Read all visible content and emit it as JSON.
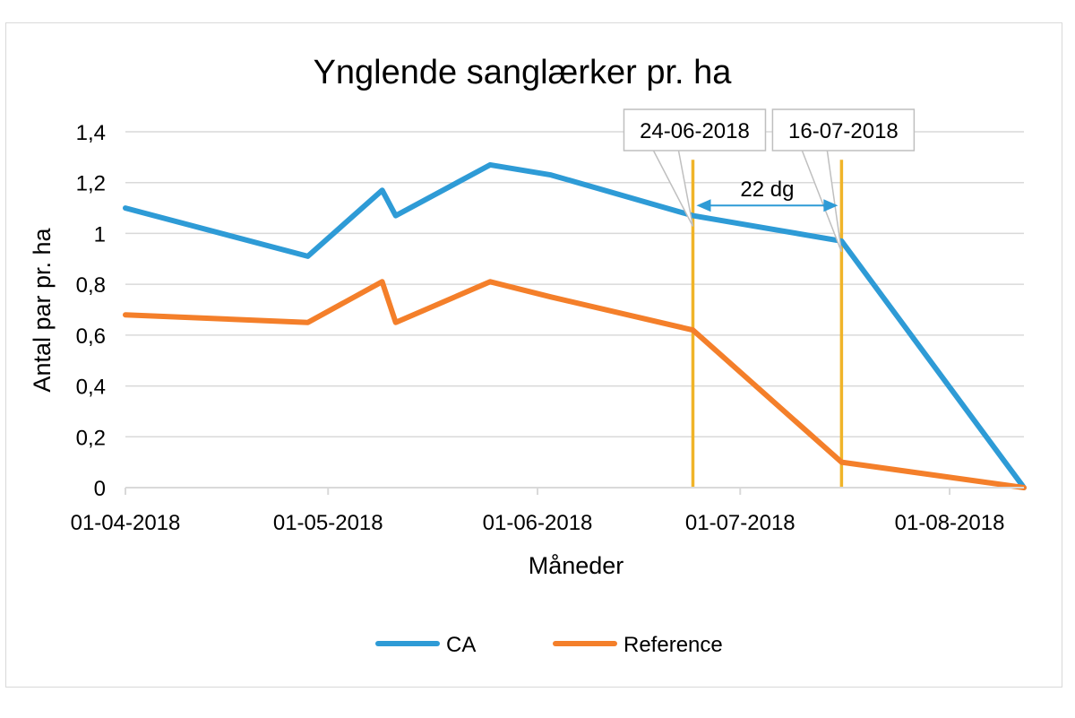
{
  "chart_data": {
    "type": "line",
    "title": "Ynglende sanglærker pr. ha",
    "xlabel": "Måneder",
    "ylabel": "Antal par pr. ha",
    "ylim": [
      0,
      1.4
    ],
    "yticks": [
      0,
      0.2,
      0.4,
      0.6,
      0.8,
      1.0,
      1.2,
      1.4
    ],
    "ytick_labels": [
      "0",
      "0,2",
      "0,4",
      "0,6",
      "0,8",
      "1",
      "1,2",
      "1,4"
    ],
    "xlim_days": [
      0,
      133
    ],
    "x_ticks": [
      {
        "day": 0,
        "label": "01-04-2018"
      },
      {
        "day": 30,
        "label": "01-05-2018"
      },
      {
        "day": 61,
        "label": "01-06-2018"
      },
      {
        "day": 91,
        "label": "01-07-2018"
      },
      {
        "day": 122,
        "label": "01-08-2018"
      }
    ],
    "grid": true,
    "legend_position": "bottom",
    "series": [
      {
        "name": "CA",
        "color": "#2e9bd6",
        "points": [
          {
            "date": "01-04-2018",
            "day": 0,
            "value": 1.1
          },
          {
            "date": "28-04-2018",
            "day": 27,
            "value": 0.91
          },
          {
            "date": "09-05-2018",
            "day": 38,
            "value": 1.17
          },
          {
            "date": "11-05-2018",
            "day": 40,
            "value": 1.07
          },
          {
            "date": "25-05-2018",
            "day": 54,
            "value": 1.27
          },
          {
            "date": "03-06-2018",
            "day": 63,
            "value": 1.23
          },
          {
            "date": "24-06-2018",
            "day": 84,
            "value": 1.07
          },
          {
            "date": "16-07-2018",
            "day": 106,
            "value": 0.97
          },
          {
            "date": "12-08-2018",
            "day": 133,
            "value": 0.0
          }
        ]
      },
      {
        "name": "Reference",
        "color": "#f47f2a",
        "points": [
          {
            "date": "01-04-2018",
            "day": 0,
            "value": 0.68
          },
          {
            "date": "28-04-2018",
            "day": 27,
            "value": 0.65
          },
          {
            "date": "09-05-2018",
            "day": 38,
            "value": 0.81
          },
          {
            "date": "11-05-2018",
            "day": 40,
            "value": 0.65
          },
          {
            "date": "25-05-2018",
            "day": 54,
            "value": 0.81
          },
          {
            "date": "03-06-2018",
            "day": 63,
            "value": 0.75
          },
          {
            "date": "24-06-2018",
            "day": 84,
            "value": 0.62
          },
          {
            "date": "16-07-2018",
            "day": 106,
            "value": 0.1
          },
          {
            "date": "12-08-2018",
            "day": 133,
            "value": 0.0
          }
        ]
      }
    ],
    "annotations": {
      "markers": [
        {
          "label": "24-06-2018",
          "day": 84
        },
        {
          "label": "16-07-2018",
          "day": 106
        }
      ],
      "interval_label": "22 dg",
      "interval_value": 1.11,
      "marker_color": "#f0b429"
    }
  }
}
